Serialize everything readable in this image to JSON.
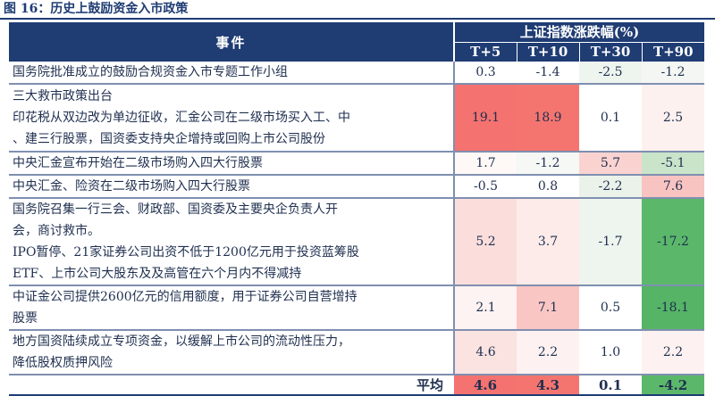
{
  "figure_title": "图 16：历史上鼓励资金入市政策",
  "header": {
    "event_col": "事件",
    "group_title": "上证指数涨跌幅(%)",
    "periods": [
      "T+5",
      "T+10",
      "T+30",
      "T+90"
    ]
  },
  "rows": [
    {
      "event_lines": [
        "国务院批准成立的鼓励合规资金入市专题工作小组"
      ],
      "values": [
        "0.3",
        "-1.4",
        "-2.5",
        "-1.2"
      ],
      "colors": [
        "#ffffff",
        "#ffffff",
        "#eef4ee",
        "#f3f6f2"
      ]
    },
    {
      "event_lines": [
        "三大救市政策出台",
        "印花税从双边改为单边征收，汇金公司在二级市场买入工、中",
        "、建三行股票，国资委支持央企增持或回购上市公司股份"
      ],
      "values": [
        "19.1",
        "18.9",
        "0.1",
        "2.5"
      ],
      "colors": [
        "#f4726f",
        "#f4756f",
        "#ffffff",
        "#fdf1ef"
      ]
    },
    {
      "event_lines": [
        "中央汇金宣布开始在二级市场购入四大行股票"
      ],
      "values": [
        "1.7",
        "-1.2",
        "5.7",
        "-5.1"
      ],
      "colors": [
        "#fef8f7",
        "#f5f8f4",
        "#fad3d1",
        "#c9e4c9"
      ]
    },
    {
      "event_lines": [
        "中央汇金、险资在二级市场购入四大行股票"
      ],
      "values": [
        "-0.5",
        "0.8",
        "-2.2",
        "7.6"
      ],
      "colors": [
        "#ffffff",
        "#ffffff",
        "#eaf2ea",
        "#f8c4c1"
      ]
    },
    {
      "event_lines": [
        "国务院召集一行三会、财政部、国资委及主要央企负责人开",
        "会，商讨救市。",
        "IPO暂停、21家证券公司出资不低于1200亿元用于投资蓝筹股",
        "ETF、上市公司大股东及及高管在六个月内不得减持"
      ],
      "values": [
        "5.2",
        "3.7",
        "-1.7",
        "-17.2"
      ],
      "colors": [
        "#fbdedc",
        "#fcebe9",
        "#eef4ee",
        "#5bb86a"
      ]
    },
    {
      "event_lines": [
        "中证金公司提供2600亿元的信用额度，用于证券公司自营增持",
        "股票"
      ],
      "values": [
        "2.1",
        "7.1",
        "0.5",
        "-18.1"
      ],
      "colors": [
        "#fdf3f2",
        "#f9c6c3",
        "#ffffff",
        "#55b465"
      ]
    },
    {
      "event_lines": [
        "地方国资陆续成立专项资金，以缓解上市公司的流动性压力，",
        "降低股权质押风险"
      ],
      "values": [
        "4.6",
        "2.2",
        "1.0",
        "2.2"
      ],
      "colors": [
        "#fbe3e1",
        "#fdf2f1",
        "#ffffff",
        "#fdf2f1"
      ]
    }
  ],
  "average": {
    "label": "平均",
    "values": [
      "4.6",
      "4.3",
      "0.1",
      "-4.2"
    ],
    "colors": [
      "#f4726f",
      "#f4756f",
      "#ffffff",
      "#5bb86a"
    ]
  }
}
